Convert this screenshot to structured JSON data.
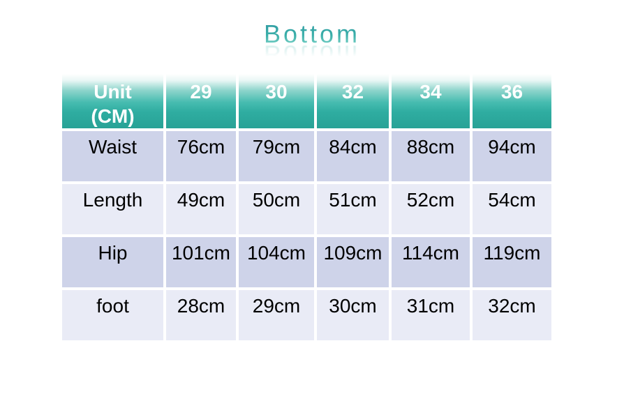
{
  "title": {
    "text": "Bottom",
    "color_top": "#2e97a2",
    "color_bottom": "#8cdccf"
  },
  "table": {
    "header": [
      "Unit\n(CM)",
      "29",
      "30",
      "32",
      "34",
      "36"
    ],
    "rows": [
      {
        "label": "Waist",
        "values": [
          "76cm",
          "79cm",
          "84cm",
          "88cm",
          "94cm"
        ]
      },
      {
        "label": "Length",
        "values": [
          "49cm",
          "50cm",
          "51cm",
          "52cm",
          "54cm"
        ]
      },
      {
        "label": "Hip",
        "values": [
          "101cm",
          "104cm",
          "109cm",
          "114cm",
          "119cm"
        ]
      },
      {
        "label": "foot",
        "values": [
          "28cm",
          "29cm",
          "30cm",
          "31cm",
          "32cm"
        ]
      }
    ],
    "colors": {
      "header_gradient_top": "#ffffff",
      "header_gradient_bottom": "#28a296",
      "row_odd": "#ced3e9",
      "row_even": "#e9ebf6",
      "header_text": "#ffffff",
      "body_text": "#000000",
      "gap": "#ffffff"
    }
  },
  "chart_data": {
    "type": "table",
    "title": "Bottom",
    "unit": "cm",
    "columns": [
      "Unit (CM)",
      "29",
      "30",
      "32",
      "34",
      "36"
    ],
    "categories": [
      "29",
      "30",
      "32",
      "34",
      "36"
    ],
    "series": [
      {
        "name": "Waist",
        "values": [
          76,
          79,
          84,
          88,
          94
        ]
      },
      {
        "name": "Length",
        "values": [
          49,
          50,
          51,
          52,
          54
        ]
      },
      {
        "name": "Hip",
        "values": [
          101,
          104,
          109,
          114,
          119
        ]
      },
      {
        "name": "foot",
        "values": [
          28,
          29,
          30,
          31,
          32
        ]
      }
    ]
  }
}
